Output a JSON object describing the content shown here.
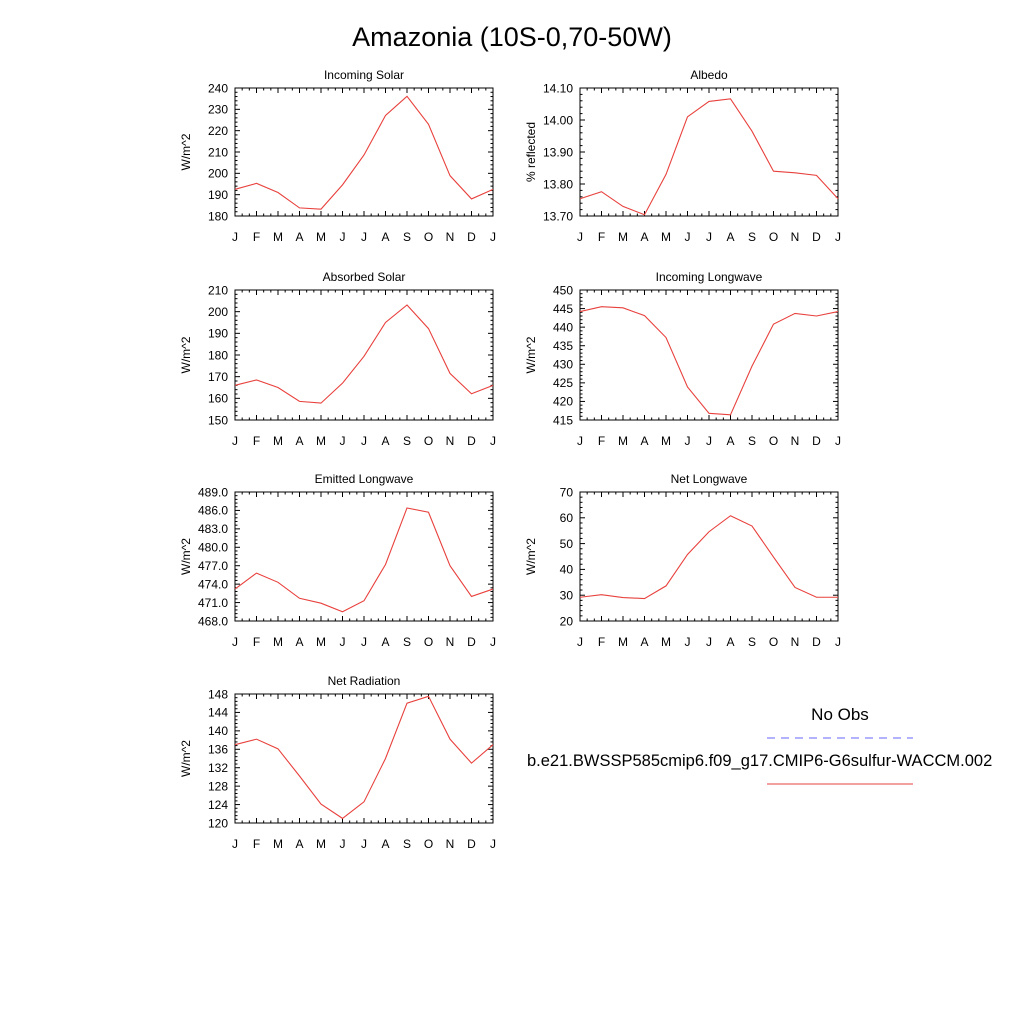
{
  "figure": {
    "title": "Amazonia (10S-0,70-50W)"
  },
  "legend": {
    "header": "No Obs",
    "case_name": "b.e21.BWSSP585cmip6.f09_g17.CMIP6-G6sulfur-WACCM.002",
    "obs_color": "#6666ff",
    "case_color": "#e8413d"
  },
  "chart_data": [
    {
      "type": "line",
      "title": "Incoming Solar",
      "ylabel": "W/m^2",
      "xlabel": "",
      "x": [
        "J",
        "F",
        "M",
        "A",
        "M",
        "J",
        "J",
        "A",
        "S",
        "O",
        "N",
        "D",
        "J"
      ],
      "ylim": [
        180,
        240
      ],
      "yticks": [
        "180",
        "190",
        "200",
        "210",
        "220",
        "230",
        "240"
      ],
      "grid": false,
      "series": [
        {
          "color": "#e8413d",
          "values": [
            192.5,
            195.3,
            191.0,
            183.8,
            183.2,
            194.6,
            208.6,
            227.1,
            236.1,
            223.0,
            198.9,
            188.0,
            192.5
          ]
        }
      ]
    },
    {
      "type": "line",
      "title": "Albedo",
      "ylabel": "% reflected",
      "xlabel": "",
      "x": [
        "J",
        "F",
        "M",
        "A",
        "M",
        "J",
        "J",
        "A",
        "S",
        "O",
        "N",
        "D",
        "J"
      ],
      "ylim": [
        13.7,
        14.1
      ],
      "yticks": [
        "13.70",
        "13.80",
        "13.90",
        "14.00",
        "14.10"
      ],
      "grid": false,
      "series": [
        {
          "color": "#e8413d",
          "values": [
            13.754,
            13.776,
            13.73,
            13.704,
            13.83,
            14.01,
            14.058,
            14.066,
            13.965,
            13.84,
            13.835,
            13.827,
            13.754
          ]
        }
      ]
    },
    {
      "type": "line",
      "title": "Absorbed Solar",
      "ylabel": "W/m^2",
      "xlabel": "",
      "x": [
        "J",
        "F",
        "M",
        "A",
        "M",
        "J",
        "J",
        "A",
        "S",
        "O",
        "N",
        "D",
        "J"
      ],
      "ylim": [
        150,
        210
      ],
      "yticks": [
        "150",
        "160",
        "170",
        "180",
        "190",
        "200",
        "210"
      ],
      "grid": false,
      "series": [
        {
          "color": "#e8413d",
          "values": [
            166.0,
            168.5,
            165.0,
            158.6,
            157.8,
            167.0,
            179.4,
            195.0,
            203.1,
            192.2,
            171.5,
            162.1,
            166.0
          ]
        }
      ]
    },
    {
      "type": "line",
      "title": "Incoming Longwave",
      "ylabel": "W/m^2",
      "xlabel": "",
      "x": [
        "J",
        "F",
        "M",
        "A",
        "M",
        "J",
        "J",
        "A",
        "S",
        "O",
        "N",
        "D",
        "J"
      ],
      "ylim": [
        415,
        450
      ],
      "yticks": [
        "415",
        "420",
        "425",
        "430",
        "435",
        "440",
        "445",
        "450"
      ],
      "grid": false,
      "series": [
        {
          "color": "#e8413d",
          "values": [
            444.2,
            445.5,
            445.2,
            443.1,
            437.2,
            423.9,
            416.8,
            416.4,
            429.5,
            440.8,
            443.7,
            443.0,
            444.2
          ]
        }
      ]
    },
    {
      "type": "line",
      "title": "Emitted Longwave",
      "ylabel": "W/m^2",
      "xlabel": "",
      "x": [
        "J",
        "F",
        "M",
        "A",
        "M",
        "J",
        "J",
        "A",
        "S",
        "O",
        "N",
        "D",
        "J"
      ],
      "ylim": [
        468.0,
        489.0
      ],
      "yticks": [
        "468.0",
        "471.0",
        "474.0",
        "477.0",
        "480.0",
        "483.0",
        "486.0",
        "489.0"
      ],
      "grid": false,
      "series": [
        {
          "color": "#e8413d",
          "values": [
            473.2,
            475.8,
            474.3,
            471.7,
            470.9,
            469.5,
            471.3,
            477.2,
            486.4,
            485.7,
            477.0,
            472.0,
            473.2
          ]
        }
      ]
    },
    {
      "type": "line",
      "title": "Net Longwave",
      "ylabel": "W/m^2",
      "xlabel": "",
      "x": [
        "J",
        "F",
        "M",
        "A",
        "M",
        "J",
        "J",
        "A",
        "S",
        "O",
        "N",
        "D",
        "J"
      ],
      "ylim": [
        20,
        70
      ],
      "yticks": [
        "20",
        "30",
        "40",
        "50",
        "60",
        "70"
      ],
      "grid": false,
      "series": [
        {
          "color": "#e8413d",
          "values": [
            29.2,
            30.2,
            29.1,
            28.7,
            33.6,
            45.8,
            54.6,
            60.8,
            56.8,
            44.8,
            33.0,
            29.2,
            29.2
          ]
        }
      ]
    },
    {
      "type": "line",
      "title": "Net Radiation",
      "ylabel": "W/m^2",
      "xlabel": "",
      "x": [
        "J",
        "F",
        "M",
        "A",
        "M",
        "J",
        "J",
        "A",
        "S",
        "O",
        "N",
        "D",
        "J"
      ],
      "ylim": [
        120,
        148
      ],
      "yticks": [
        "120",
        "124",
        "128",
        "132",
        "136",
        "140",
        "144",
        "148"
      ],
      "grid": false,
      "series": [
        {
          "color": "#e8413d",
          "values": [
            137.0,
            138.2,
            136.1,
            130.2,
            124.1,
            121.0,
            124.6,
            134.0,
            146.0,
            147.5,
            138.2,
            133.0,
            137.0
          ]
        }
      ]
    }
  ]
}
